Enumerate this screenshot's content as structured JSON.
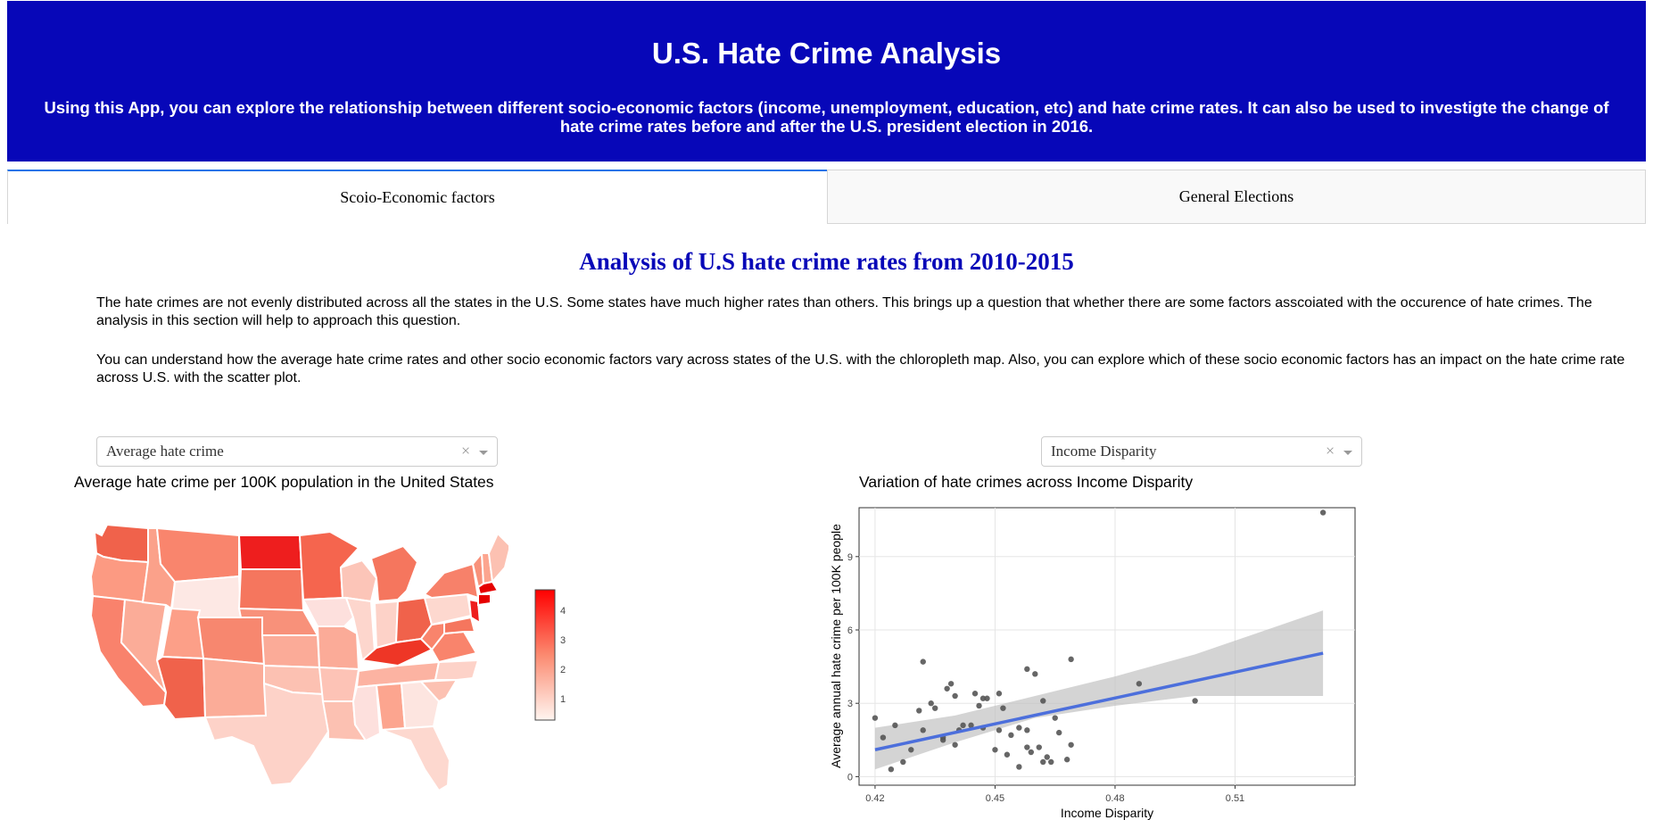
{
  "header": {
    "title": "U.S. Hate Crime Analysis",
    "subtitle": "Using this App, you can explore the relationship between different socio-economic factors (income, unemployment, education, etc) and hate crime rates. It can also be used to investigte the change of hate crime rates before and after the U.S. president election in 2016."
  },
  "tabs": [
    {
      "label": "Scoio-Economic factors",
      "active": true
    },
    {
      "label": "General Elections",
      "active": false
    }
  ],
  "main": {
    "section_title": "Analysis of U.S hate crime rates from 2010-2015",
    "paragraphs": [
      "The hate crimes are not evenly distributed across all the states in the U.S. Some states have much higher rates than others. This brings up a question that whether there are some factors asscoiated with the occurence of hate crimes. The analysis in this section will help to approach this question.",
      "You can understand how the average hate crime rates and other socio economic factors vary across states of the U.S. with the chloropleth map. Also, you can explore which of these socio economic factors has an impact on the hate crime rate across U.S. with the scatter plot."
    ]
  },
  "map_panel": {
    "dropdown_value": "Average hate crime",
    "title": "Average hate crime per 100K population in the United States",
    "colorbar_ticks": [
      "1",
      "2",
      "3",
      "4"
    ],
    "colors": {
      "low": "#fde0dd",
      "high": "#ff0000"
    }
  },
  "scatter_panel": {
    "dropdown_value": "Income Disparity",
    "title": "Variation of hate crimes across  Income Disparity"
  },
  "icons": {
    "clear": "×",
    "dropdown_arrow": "caret-down-icon"
  },
  "chart_data": {
    "type": "scatter",
    "title": "Variation of hate crimes across  Income Disparity",
    "xlabel": "Income Disparity",
    "ylabel": "Average annual hate crime per 100K people",
    "xlim": [
      0.416,
      0.54
    ],
    "ylim": [
      -0.35,
      11.0
    ],
    "xticks": [
      0.42,
      0.45,
      0.48,
      0.51
    ],
    "xtick_labels": [
      "0.42",
      "0.45",
      "0.48",
      "0.51"
    ],
    "yticks": [
      0,
      3,
      6,
      9
    ],
    "ytick_labels": [
      "0",
      "3",
      "6",
      "9"
    ],
    "grid": true,
    "points": [
      [
        0.42,
        2.4
      ],
      [
        0.422,
        1.6
      ],
      [
        0.424,
        0.3
      ],
      [
        0.425,
        2.1
      ],
      [
        0.427,
        0.6
      ],
      [
        0.429,
        1.1
      ],
      [
        0.431,
        2.7
      ],
      [
        0.432,
        1.9
      ],
      [
        0.432,
        4.7
      ],
      [
        0.434,
        3.0
      ],
      [
        0.435,
        2.8
      ],
      [
        0.437,
        1.6
      ],
      [
        0.437,
        1.5
      ],
      [
        0.438,
        3.6
      ],
      [
        0.439,
        3.8
      ],
      [
        0.44,
        3.3
      ],
      [
        0.44,
        1.3
      ],
      [
        0.441,
        1.9
      ],
      [
        0.442,
        2.1
      ],
      [
        0.444,
        2.1
      ],
      [
        0.445,
        3.4
      ],
      [
        0.446,
        2.9
      ],
      [
        0.447,
        2.0
      ],
      [
        0.447,
        3.2
      ],
      [
        0.448,
        3.2
      ],
      [
        0.45,
        1.1
      ],
      [
        0.451,
        1.9
      ],
      [
        0.451,
        3.4
      ],
      [
        0.452,
        2.8
      ],
      [
        0.453,
        0.9
      ],
      [
        0.454,
        1.7
      ],
      [
        0.456,
        0.4
      ],
      [
        0.456,
        2.0
      ],
      [
        0.458,
        1.2
      ],
      [
        0.458,
        4.4
      ],
      [
        0.458,
        1.9
      ],
      [
        0.459,
        1.0
      ],
      [
        0.46,
        4.2
      ],
      [
        0.461,
        1.2
      ],
      [
        0.462,
        0.6
      ],
      [
        0.462,
        3.1
      ],
      [
        0.463,
        0.8
      ],
      [
        0.464,
        0.6
      ],
      [
        0.465,
        2.4
      ],
      [
        0.466,
        1.8
      ],
      [
        0.468,
        0.7
      ],
      [
        0.469,
        4.8
      ],
      [
        0.469,
        1.3
      ],
      [
        0.486,
        3.8
      ],
      [
        0.5,
        3.1
      ],
      [
        0.532,
        10.8
      ]
    ],
    "trend_line": {
      "x": [
        0.42,
        0.532
      ],
      "y": [
        1.1,
        5.05
      ]
    },
    "confidence_band": {
      "x": [
        0.42,
        0.44,
        0.46,
        0.48,
        0.5,
        0.532
      ],
      "lower": [
        0.3,
        1.4,
        2.4,
        2.9,
        3.3,
        3.3
      ],
      "upper": [
        2.0,
        2.5,
        3.3,
        4.1,
        5.0,
        6.8
      ]
    }
  }
}
